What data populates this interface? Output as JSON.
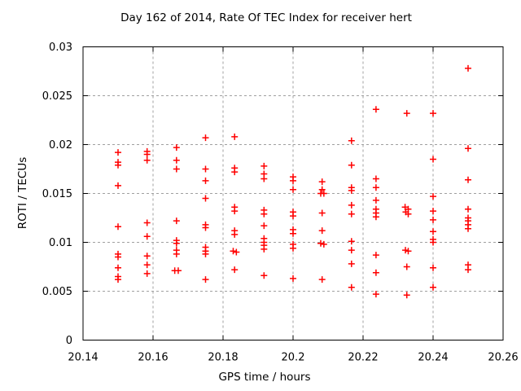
{
  "chart_data": {
    "type": "scatter",
    "title": "Day 162 of 2014, Rate Of TEC Index for receiver hert",
    "xlabel": "GPS time / hours",
    "ylabel": "ROTI / TECUs",
    "xlim": [
      20.14,
      20.26
    ],
    "ylim": [
      0,
      0.03
    ],
    "x_ticks": [
      20.14,
      20.16,
      20.18,
      20.2,
      20.22,
      20.24,
      20.26
    ],
    "x_tick_labels": [
      "20.14",
      "20.16",
      "20.18",
      "20.2",
      "20.22",
      "20.24",
      "20.26"
    ],
    "y_ticks": [
      0,
      0.005,
      0.01,
      0.015,
      0.02,
      0.025,
      0.03
    ],
    "y_tick_labels": [
      "0",
      "0.005",
      "0.01",
      "0.015",
      "0.02",
      "0.025",
      "0.03"
    ],
    "grid": true,
    "legend": "none",
    "marker": {
      "shape": "plus",
      "color": "#ff0000",
      "size": 9
    },
    "series": [
      {
        "name": "ROTI",
        "points": [
          [
            20.15,
            0.0192
          ],
          [
            20.15,
            0.0182
          ],
          [
            20.15,
            0.0179
          ],
          [
            20.15,
            0.0158
          ],
          [
            20.15,
            0.0116
          ],
          [
            20.15,
            0.0088
          ],
          [
            20.15,
            0.0085
          ],
          [
            20.15,
            0.0074
          ],
          [
            20.15,
            0.0065
          ],
          [
            20.15,
            0.0062
          ],
          [
            20.1583,
            0.0193
          ],
          [
            20.1583,
            0.019
          ],
          [
            20.1583,
            0.0184
          ],
          [
            20.1583,
            0.012
          ],
          [
            20.1583,
            0.0106
          ],
          [
            20.1583,
            0.0086
          ],
          [
            20.1583,
            0.0077
          ],
          [
            20.1583,
            0.0068
          ],
          [
            20.1667,
            0.0197
          ],
          [
            20.1667,
            0.0184
          ],
          [
            20.1667,
            0.0175
          ],
          [
            20.1667,
            0.0122
          ],
          [
            20.1667,
            0.0102
          ],
          [
            20.1667,
            0.0099
          ],
          [
            20.1667,
            0.0092
          ],
          [
            20.1667,
            0.0088
          ],
          [
            20.1662,
            0.0071
          ],
          [
            20.1672,
            0.0071
          ],
          [
            20.175,
            0.0207
          ],
          [
            20.175,
            0.0175
          ],
          [
            20.175,
            0.0163
          ],
          [
            20.175,
            0.0145
          ],
          [
            20.175,
            0.0118
          ],
          [
            20.175,
            0.0115
          ],
          [
            20.175,
            0.0095
          ],
          [
            20.175,
            0.0091
          ],
          [
            20.175,
            0.0088
          ],
          [
            20.175,
            0.0062
          ],
          [
            20.1833,
            0.0208
          ],
          [
            20.1833,
            0.0176
          ],
          [
            20.1833,
            0.0172
          ],
          [
            20.1833,
            0.0136
          ],
          [
            20.1833,
            0.0132
          ],
          [
            20.1833,
            0.0112
          ],
          [
            20.1833,
            0.0108
          ],
          [
            20.1829,
            0.0091
          ],
          [
            20.1838,
            0.009
          ],
          [
            20.1833,
            0.0072
          ],
          [
            20.1917,
            0.0178
          ],
          [
            20.1917,
            0.017
          ],
          [
            20.1917,
            0.0165
          ],
          [
            20.1917,
            0.0133
          ],
          [
            20.1917,
            0.0129
          ],
          [
            20.1917,
            0.0117
          ],
          [
            20.1917,
            0.0104
          ],
          [
            20.1917,
            0.01
          ],
          [
            20.1917,
            0.0097
          ],
          [
            20.1917,
            0.0093
          ],
          [
            20.1917,
            0.0066
          ],
          [
            20.2,
            0.0167
          ],
          [
            20.2,
            0.0163
          ],
          [
            20.2,
            0.0154
          ],
          [
            20.2,
            0.0131
          ],
          [
            20.2,
            0.0127
          ],
          [
            20.2,
            0.0113
          ],
          [
            20.2,
            0.0109
          ],
          [
            20.2,
            0.0098
          ],
          [
            20.2,
            0.0094
          ],
          [
            20.2,
            0.0063
          ],
          [
            20.2083,
            0.0162
          ],
          [
            20.2083,
            0.0154
          ],
          [
            20.2079,
            0.015
          ],
          [
            20.2088,
            0.015
          ],
          [
            20.2083,
            0.013
          ],
          [
            20.2083,
            0.0112
          ],
          [
            20.2079,
            0.0099
          ],
          [
            20.2088,
            0.0098
          ],
          [
            20.2083,
            0.0062
          ],
          [
            20.2167,
            0.0204
          ],
          [
            20.2167,
            0.0179
          ],
          [
            20.2167,
            0.0156
          ],
          [
            20.2167,
            0.0153
          ],
          [
            20.2167,
            0.0138
          ],
          [
            20.2167,
            0.0129
          ],
          [
            20.2167,
            0.0101
          ],
          [
            20.2167,
            0.0092
          ],
          [
            20.2167,
            0.0078
          ],
          [
            20.2167,
            0.0054
          ],
          [
            20.2237,
            0.0236
          ],
          [
            20.2237,
            0.0165
          ],
          [
            20.2237,
            0.0156
          ],
          [
            20.2237,
            0.0143
          ],
          [
            20.2237,
            0.0134
          ],
          [
            20.2237,
            0.013
          ],
          [
            20.2237,
            0.0126
          ],
          [
            20.2237,
            0.0087
          ],
          [
            20.2237,
            0.0069
          ],
          [
            20.2237,
            0.0047
          ],
          [
            20.2325,
            0.0232
          ],
          [
            20.232,
            0.0136
          ],
          [
            20.2329,
            0.0134
          ],
          [
            20.2322,
            0.0131
          ],
          [
            20.2329,
            0.0129
          ],
          [
            20.2321,
            0.0092
          ],
          [
            20.2329,
            0.0091
          ],
          [
            20.2325,
            0.0075
          ],
          [
            20.2325,
            0.0046
          ],
          [
            20.24,
            0.0232
          ],
          [
            20.24,
            0.0185
          ],
          [
            20.24,
            0.0147
          ],
          [
            20.24,
            0.0132
          ],
          [
            20.24,
            0.0123
          ],
          [
            20.24,
            0.0111
          ],
          [
            20.24,
            0.0103
          ],
          [
            20.24,
            0.01
          ],
          [
            20.24,
            0.0074
          ],
          [
            20.24,
            0.0054
          ],
          [
            20.25,
            0.0278
          ],
          [
            20.25,
            0.0196
          ],
          [
            20.25,
            0.0164
          ],
          [
            20.25,
            0.0134
          ],
          [
            20.25,
            0.0125
          ],
          [
            20.25,
            0.0122
          ],
          [
            20.25,
            0.0118
          ],
          [
            20.25,
            0.0114
          ],
          [
            20.25,
            0.0077
          ],
          [
            20.25,
            0.0072
          ]
        ]
      }
    ],
    "colors": {
      "marker": "#ff0000",
      "grid": "#a0a0a0",
      "frame": "#000000",
      "background": "#ffffff"
    }
  }
}
